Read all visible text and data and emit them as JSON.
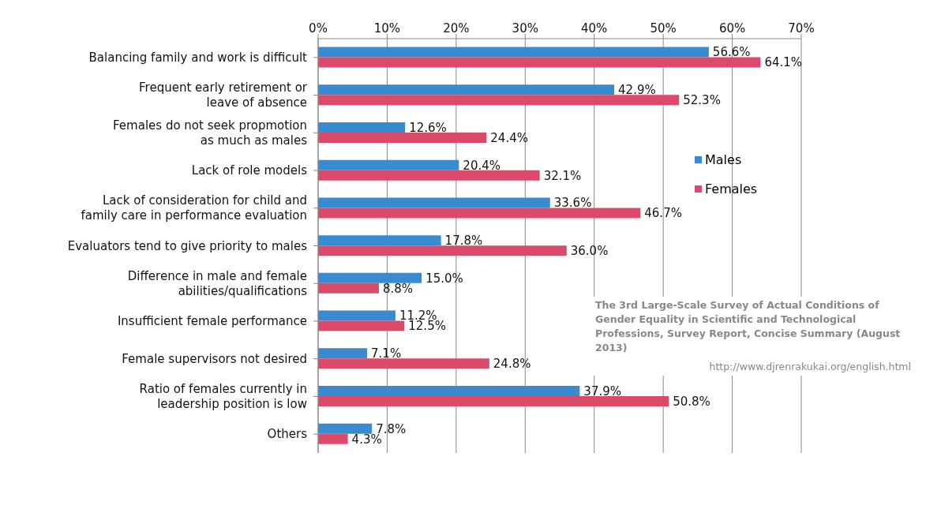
{
  "chart_data": {
    "type": "bar",
    "orientation": "horizontal",
    "categories": [
      "Balancing family and work is difficult",
      "Frequent early retirement or\nleave of absence",
      "Females do not seek propmotion\nas much as males",
      "Lack of role models",
      "Lack of consideration for child and\nfamily care in performance evaluation",
      "Evaluators tend to give priority to males",
      "Difference in male and female\nabilities/qualifications",
      "Insufficient female performance",
      "Female supervisors not desired",
      "Ratio of females currently in\nleadership position is low",
      "Others"
    ],
    "series": [
      {
        "name": "Males",
        "color": "#3a8ad0",
        "values": [
          56.6,
          42.9,
          12.6,
          20.4,
          33.6,
          17.8,
          15.0,
          11.2,
          7.1,
          37.9,
          7.8
        ],
        "value_labels": [
          "56.6%",
          "42.9%",
          "12.6%",
          "20.4%",
          "33.6%",
          "17.8%",
          "15.0%",
          "11.2%",
          "7.1%",
          "37.9%",
          "7.8%"
        ]
      },
      {
        "name": "Females",
        "color": "#dc4a6a",
        "values": [
          64.1,
          52.3,
          24.4,
          32.1,
          46.7,
          36.0,
          8.8,
          12.5,
          24.8,
          50.8,
          4.3
        ],
        "value_labels": [
          "64.1%",
          "52.3%",
          "24.4%",
          "32.1%",
          "46.7%",
          "36.0%",
          "8.8%",
          "12.5%",
          "24.8%",
          "50.8%",
          "4.3%"
        ]
      }
    ],
    "xlim": [
      0,
      70
    ],
    "xticks": [
      {
        "value": 0,
        "label": "0%"
      },
      {
        "value": 10,
        "label": "10%"
      },
      {
        "value": 20,
        "label": "20%"
      },
      {
        "value": 30,
        "label": "30%"
      },
      {
        "value": 40,
        "label": "40%"
      },
      {
        "value": 50,
        "label": "50%"
      },
      {
        "value": 60,
        "label": "60%"
      },
      {
        "value": 70,
        "label": "70%"
      }
    ],
    "grid": "x",
    "legend": "right",
    "annotations": [
      "The 3rd Large-Scale Survey of Actual Conditions of Gender Equality in Scientific and Technological Professions, Survey Report, Concise Summary (August 2013)",
      "http://www.djrenrakukai.org/english.html"
    ]
  }
}
